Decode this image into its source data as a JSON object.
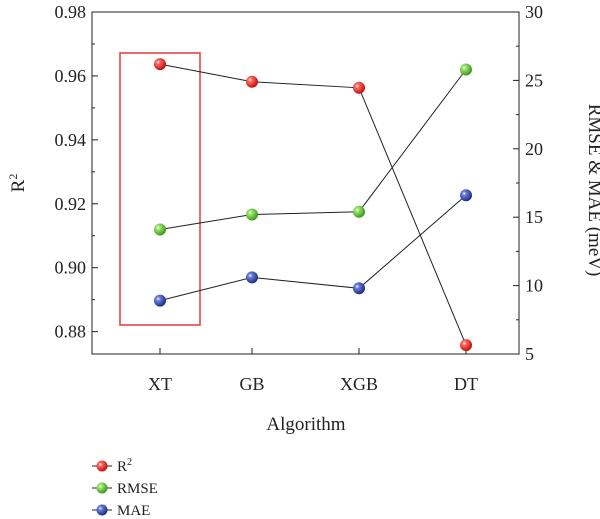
{
  "chart_data": {
    "type": "line",
    "xlabel": "Algorithm",
    "categories": [
      "XT",
      "GB",
      "XGB",
      "DT"
    ],
    "left_axis": {
      "label": "R²",
      "ylim": [
        0.873,
        0.98
      ],
      "ticks": [
        0.88,
        0.9,
        0.92,
        0.94,
        0.96,
        0.98
      ],
      "tick_labels": [
        "0.88",
        "0.90",
        "0.92",
        "0.94",
        "0.96",
        "0.98"
      ]
    },
    "right_axis": {
      "label": "RMSE & MAE (meV)",
      "ylim": [
        5,
        30
      ],
      "ticks": [
        5,
        10,
        15,
        20,
        25,
        30
      ],
      "tick_labels": [
        "5",
        "10",
        "15",
        "20",
        "25",
        "30"
      ]
    },
    "series": [
      {
        "name": "R",
        "legend_sup": "2",
        "axis": "left",
        "color": "#e8201e",
        "values": [
          0.9637,
          0.9582,
          0.9563,
          0.8758
        ]
      },
      {
        "name": "RMSE",
        "axis": "right",
        "color": "#5cc233",
        "values": [
          14.1,
          15.2,
          15.4,
          25.8
        ]
      },
      {
        "name": "MAE",
        "axis": "right",
        "color": "#2f44a6",
        "values": [
          8.9,
          10.6,
          9.8,
          16.6
        ]
      }
    ],
    "highlight": {
      "category": "XT",
      "color": "#e03a3a"
    },
    "grid": false,
    "legend_position": "bottom-left"
  }
}
